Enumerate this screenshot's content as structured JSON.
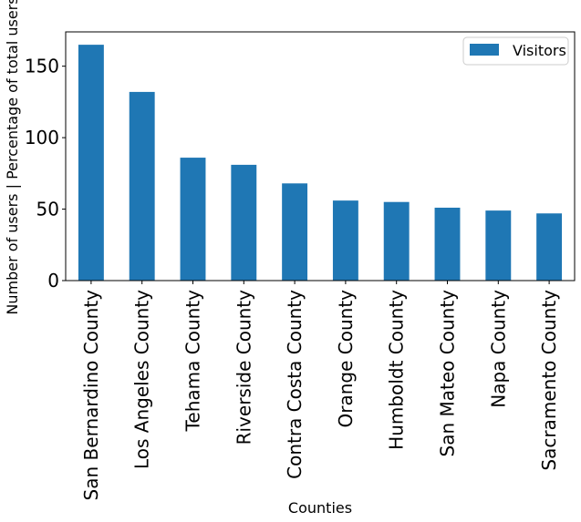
{
  "chart_data": {
    "type": "bar",
    "categories": [
      "San Bernardino County",
      "Los Angeles County",
      "Tehama County",
      "Riverside County",
      "Contra Costa County",
      "Orange County",
      "Humboldt County",
      "San Mateo County",
      "Napa County",
      "Sacramento County"
    ],
    "series": [
      {
        "name": "Visitors",
        "values": [
          165,
          132,
          86,
          81,
          68,
          56,
          55,
          51,
          49,
          47
        ],
        "color": "#1f77b4"
      }
    ],
    "title": "",
    "xlabel": "Counties",
    "ylabel": "Number of users | Percentage of total users",
    "ylim": [
      0,
      174
    ],
    "yticks": [
      0,
      50,
      100,
      150
    ],
    "grid": false,
    "legend_position": "top-right"
  }
}
